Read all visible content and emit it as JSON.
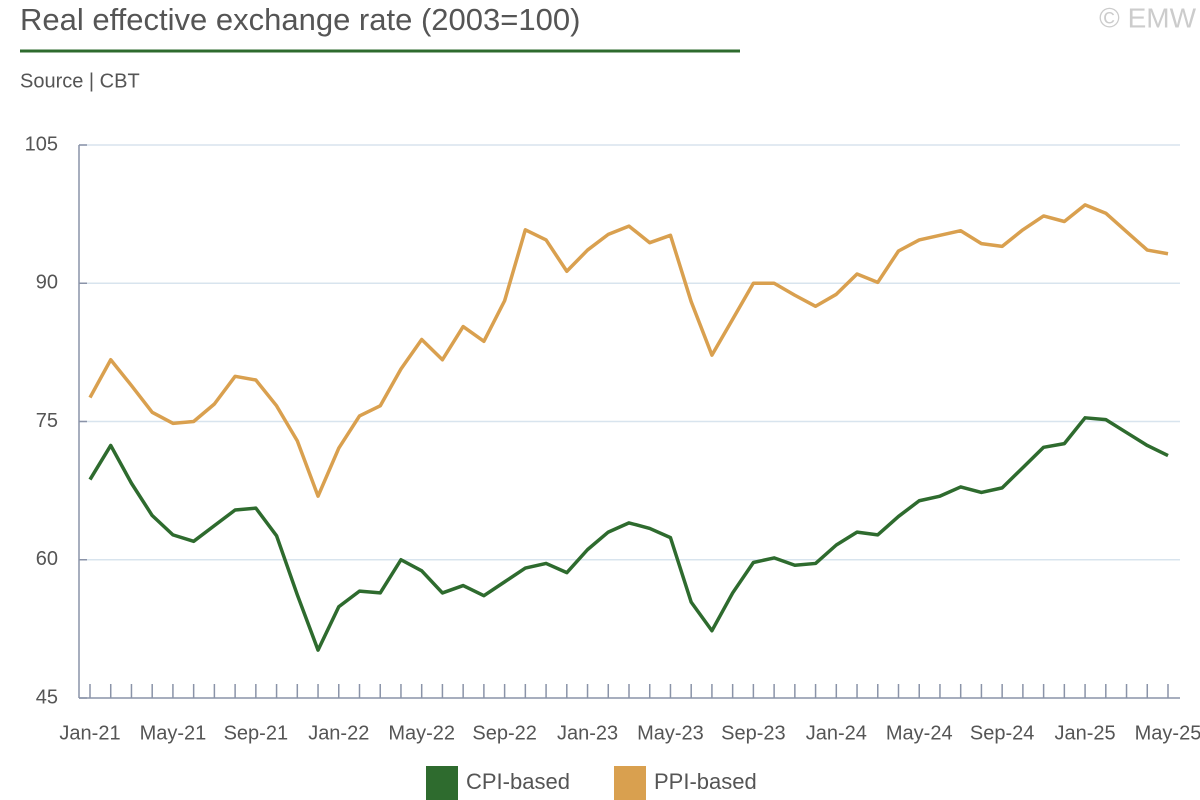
{
  "chart_data": {
    "type": "line",
    "title": "Real effective exchange rate (2003=100)",
    "subtitle": "Source | CBT",
    "copyright": "© EMW",
    "categories": [
      "Jan-21",
      null,
      null,
      null,
      "May-21",
      null,
      null,
      null,
      "Sep-21",
      null,
      null,
      null,
      "Jan-22",
      null,
      null,
      null,
      "May-22",
      null,
      null,
      null,
      "Sep-22",
      null,
      null,
      null,
      "Jan-23",
      null,
      null,
      null,
      "May-23",
      null,
      null,
      null,
      "Sep-23",
      null,
      null,
      null,
      "Jan-24",
      null,
      null,
      null,
      "May-24",
      null,
      null,
      null,
      "Sep-24",
      null,
      null,
      null,
      "Jan-25",
      null,
      null,
      null,
      "May-25"
    ],
    "series": [
      {
        "name": "CPI-based",
        "color": "#2e6b2e",
        "values": [
          68.7,
          72.4,
          68.3,
          64.8,
          62.7,
          62.0,
          63.7,
          65.4,
          65.6,
          62.6,
          56.2,
          50.2,
          54.9,
          56.6,
          56.4,
          60.0,
          58.8,
          56.4,
          57.2,
          56.1,
          57.6,
          59.1,
          59.6,
          58.6,
          61.1,
          63.0,
          64.0,
          63.4,
          62.4,
          55.4,
          52.3,
          56.4,
          59.7,
          60.2,
          59.4,
          59.6,
          61.6,
          63.0,
          62.7,
          64.7,
          66.4,
          66.9,
          67.9,
          67.3,
          67.8,
          70.0,
          72.2,
          72.6,
          75.4,
          75.2,
          73.8,
          72.4,
          71.3
        ]
      },
      {
        "name": "PPI-based",
        "color": "#d9a04f",
        "values": [
          77.6,
          81.7,
          78.9,
          76.0,
          74.8,
          75.0,
          76.9,
          79.9,
          79.5,
          76.7,
          72.9,
          66.9,
          72.1,
          75.6,
          76.7,
          80.7,
          83.9,
          81.7,
          85.3,
          83.7,
          88.1,
          95.8,
          94.7,
          91.3,
          93.6,
          95.3,
          96.2,
          94.4,
          95.2,
          88.0,
          82.2,
          86.1,
          90.0,
          90.0,
          88.7,
          87.5,
          88.8,
          91.0,
          90.1,
          93.5,
          94.7,
          95.2,
          95.7,
          94.3,
          94.0,
          95.8,
          97.3,
          96.7,
          98.5,
          97.6,
          95.6,
          93.6,
          93.2
        ]
      }
    ],
    "ylim": [
      45,
      105
    ],
    "yticks": [
      45,
      60,
      75,
      90,
      105
    ],
    "grid": true
  }
}
